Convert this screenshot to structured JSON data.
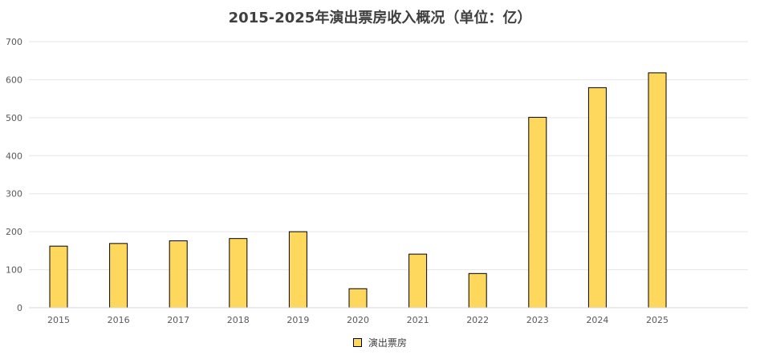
{
  "chart_data": {
    "type": "bar",
    "title": "2015-2025年演出票房收入概况（单位：亿）",
    "categories": [
      "2015",
      "2016",
      "2017",
      "2018",
      "2019",
      "2020",
      "2021",
      "2022",
      "2023",
      "2024",
      "2025"
    ],
    "series": [
      {
        "name": "演出票房",
        "values": [
          162,
          169,
          176,
          182,
          200,
          50,
          141,
          90,
          501,
          579,
          618
        ],
        "color": "#FDD85D"
      }
    ],
    "ylim": [
      0,
      700
    ],
    "yticks": [
      0,
      100,
      200,
      300,
      400,
      500,
      600,
      700
    ],
    "grid": true,
    "legend": "bottom"
  }
}
